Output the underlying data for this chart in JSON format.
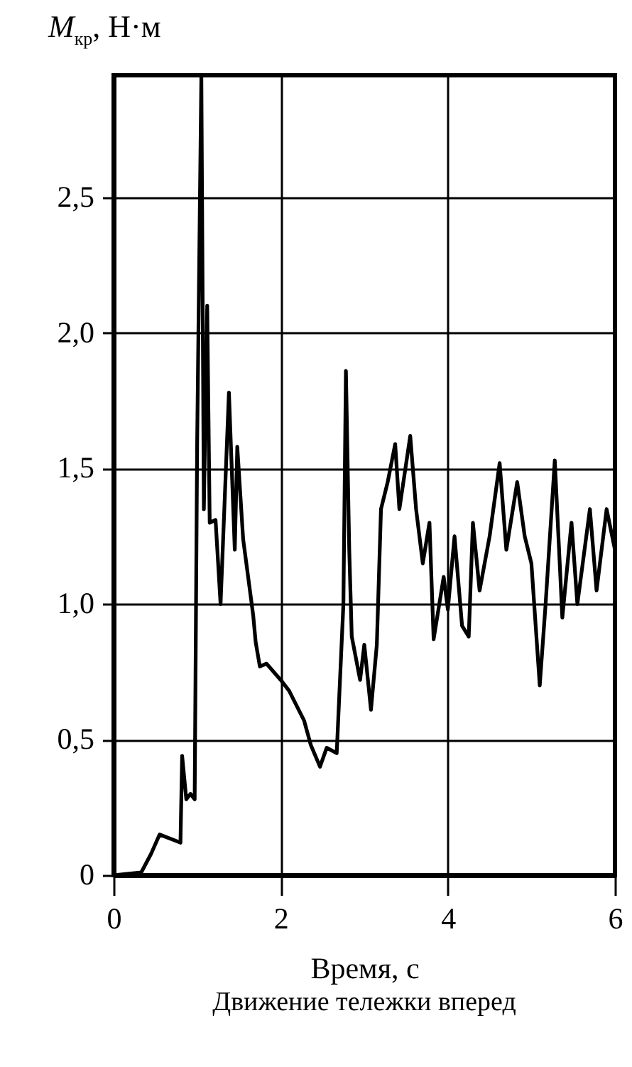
{
  "chart_data": {
    "type": "line",
    "title": "Движение тележки вперед",
    "xlabel": "Время, с",
    "ylabel": "M$_{кр}$, Н·м",
    "x": [
      0,
      0.33,
      0.45,
      0.55,
      0.8,
      0.82,
      0.87,
      0.92,
      0.97,
      1.0,
      1.05,
      1.08,
      1.12,
      1.15,
      1.22,
      1.28,
      1.38,
      1.45,
      1.48,
      1.55,
      1.67,
      1.7,
      1.75,
      1.83,
      2.0,
      2.1,
      2.28,
      2.36,
      2.47,
      2.55,
      2.67,
      2.75,
      2.78,
      2.82,
      2.85,
      2.95,
      3.0,
      3.08,
      3.15,
      3.2,
      3.28,
      3.37,
      3.42,
      3.55,
      3.62,
      3.7,
      3.78,
      3.83,
      3.95,
      4.0,
      4.08,
      4.17,
      4.25,
      4.3,
      4.38,
      4.5,
      4.62,
      4.7,
      4.83,
      4.92,
      5.0,
      5.1,
      5.17,
      5.28,
      5.37,
      5.48,
      5.55,
      5.7,
      5.78,
      5.9,
      6.0
    ],
    "series": [
      {
        "color": "#000000",
        "values": [
          0,
          0.01,
          0.08,
          0.15,
          0.12,
          0.44,
          0.28,
          0.3,
          0.28,
          1.6,
          2.95,
          1.35,
          2.1,
          1.3,
          1.31,
          1.0,
          1.78,
          1.2,
          1.58,
          1.24,
          0.96,
          0.86,
          0.77,
          0.78,
          0.72,
          0.68,
          0.57,
          0.48,
          0.4,
          0.47,
          0.45,
          1.0,
          1.86,
          1.2,
          0.88,
          0.72,
          0.85,
          0.61,
          0.85,
          1.35,
          1.45,
          1.59,
          1.35,
          1.62,
          1.35,
          1.15,
          1.3,
          0.87,
          1.1,
          0.98,
          1.25,
          0.92,
          0.88,
          1.3,
          1.05,
          1.25,
          1.52,
          1.2,
          1.45,
          1.25,
          1.15,
          0.7,
          1.0,
          1.53,
          0.95,
          1.3,
          1.0,
          1.35,
          1.05,
          1.35,
          1.2
        ]
      }
    ],
    "xlim": [
      0,
      6
    ],
    "xticks": [
      0,
      2,
      4,
      6
    ],
    "ylim": [
      0,
      2.95
    ],
    "yticks": [
      0,
      {
        "value": 0.5,
        "label": "0,5"
      },
      {
        "value": 1,
        "label": "1,0"
      },
      {
        "value": 1.5,
        "label": "1,5"
      },
      {
        "value": 2,
        "label": "2,0"
      },
      {
        "value": 2.5,
        "label": "2,5"
      }
    ],
    "grid": true,
    "line_style": "solid",
    "marker": "none"
  }
}
